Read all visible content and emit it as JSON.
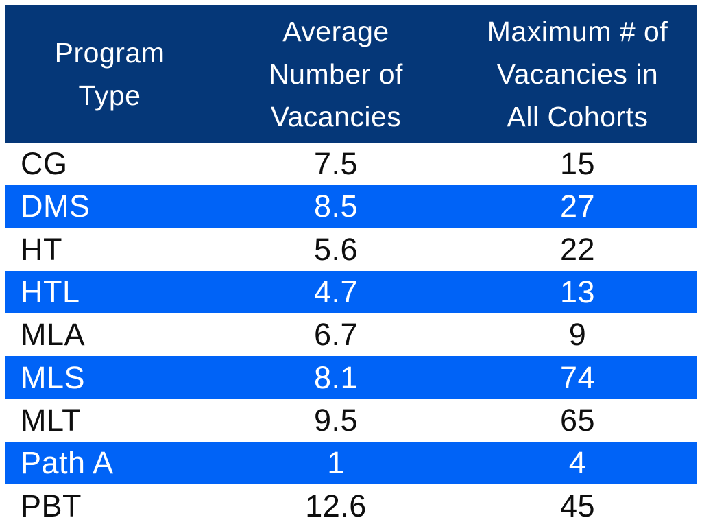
{
  "colors": {
    "header_bg": "#053778",
    "highlight_bg": "#0063f7",
    "text_dark": "#0e0e0e",
    "text_light": "#ffffff",
    "page_bg": "#ffffff"
  },
  "chart_data": {
    "type": "table",
    "columns": [
      {
        "label": "Program Type",
        "lines": [
          "Program",
          "Type"
        ]
      },
      {
        "label": "Average Number of Vacancies",
        "lines": [
          "Average",
          "Number of",
          "Vacancies"
        ]
      },
      {
        "label": "Maximum # of Vacancies in All Cohorts",
        "lines": [
          "Maximum # of",
          "Vacancies in",
          "All Cohorts"
        ]
      }
    ],
    "rows": [
      {
        "program_type": "CG",
        "avg_vacancies": "7.5",
        "max_vacancies": "15"
      },
      {
        "program_type": "DMS",
        "avg_vacancies": "8.5",
        "max_vacancies": "27"
      },
      {
        "program_type": "HT",
        "avg_vacancies": "5.6",
        "max_vacancies": "22"
      },
      {
        "program_type": "HTL",
        "avg_vacancies": "4.7",
        "max_vacancies": "13"
      },
      {
        "program_type": "MLA",
        "avg_vacancies": "6.7",
        "max_vacancies": "9"
      },
      {
        "program_type": "MLS",
        "avg_vacancies": "8.1",
        "max_vacancies": "74"
      },
      {
        "program_type": "MLT",
        "avg_vacancies": "9.5",
        "max_vacancies": "65"
      },
      {
        "program_type": "Path A",
        "avg_vacancies": "1",
        "max_vacancies": "4"
      },
      {
        "program_type": "PBT",
        "avg_vacancies": "12.6",
        "max_vacancies": "45"
      }
    ],
    "highlighted_rows": [
      "DMS",
      "HTL",
      "MLS",
      "Path A"
    ]
  }
}
